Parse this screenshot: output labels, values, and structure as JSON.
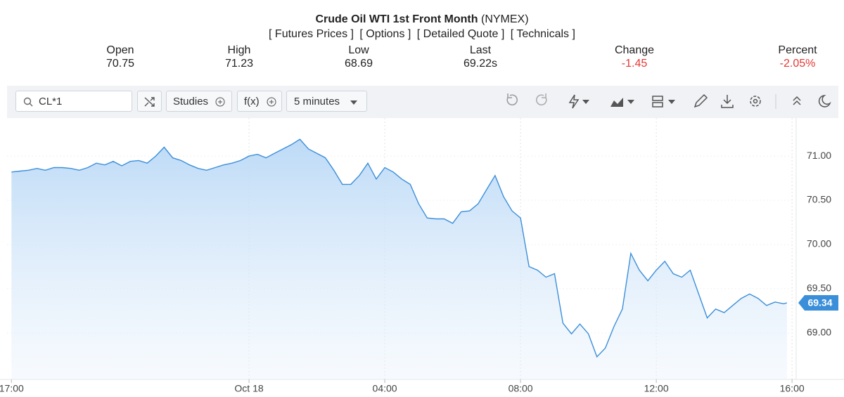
{
  "header": {
    "title": "Crude Oil WTI 1st Front Month",
    "exchange": "(NYMEX)",
    "links": [
      "[ Futures Prices ]",
      "[ Options ]",
      "[ Detailed Quote ]",
      "[ Technicals ]"
    ]
  },
  "quote": [
    {
      "label": "Open",
      "value": "70.75"
    },
    {
      "label": "High",
      "value": "71.23"
    },
    {
      "label": "Low",
      "value": "68.69"
    },
    {
      "label": "Last",
      "value": "69.22s"
    },
    {
      "label": "Change",
      "value": "-1.45"
    },
    {
      "label": "Percent",
      "value": "-2.05%"
    }
  ],
  "toolbar": {
    "symbol": "CL*1",
    "studies": "Studies",
    "function": "f(x)",
    "interval": "5 minutes"
  },
  "chart_data": {
    "type": "line",
    "color": "#3b8fd9",
    "area": true,
    "grid": true,
    "x": [
      17,
      17.25,
      17.5,
      17.75,
      18,
      18.25,
      18.5,
      18.75,
      19,
      19.25,
      19.5,
      19.75,
      20,
      20.25,
      20.5,
      20.75,
      21,
      21.25,
      21.5,
      21.75,
      22,
      22.25,
      22.5,
      22.75,
      23,
      23.25,
      23.5,
      23.75,
      24,
      24.25,
      24.5,
      24.75,
      25,
      25.25,
      25.5,
      25.75,
      26,
      26.25,
      26.5,
      26.75,
      27,
      27.25,
      27.5,
      27.75,
      28,
      28.25,
      28.5,
      28.75,
      29,
      29.25,
      29.5,
      29.75,
      30,
      30.25,
      30.5,
      30.75,
      31,
      31.25,
      31.5,
      31.75,
      32,
      32.25,
      32.5,
      32.75,
      33,
      33.25,
      33.5,
      33.75,
      34,
      34.25,
      34.5,
      34.75,
      35,
      35.25,
      35.5,
      35.75,
      36,
      36.25,
      36.5,
      36.75,
      37,
      37.25,
      37.5,
      37.75,
      38,
      38.25,
      38.5,
      38.75,
      39,
      39.25,
      39.5,
      39.75,
      39.85
    ],
    "values": [
      70.82,
      70.83,
      70.84,
      70.86,
      70.84,
      70.87,
      70.87,
      70.86,
      70.84,
      70.87,
      70.92,
      70.9,
      70.94,
      70.89,
      70.94,
      70.95,
      70.92,
      71.0,
      71.1,
      70.98,
      70.95,
      70.9,
      70.86,
      70.84,
      70.87,
      70.9,
      70.92,
      70.95,
      71.0,
      71.02,
      70.98,
      71.03,
      71.08,
      71.13,
      71.19,
      71.08,
      71.03,
      70.98,
      70.84,
      70.68,
      70.68,
      70.78,
      70.92,
      70.74,
      70.87,
      70.82,
      70.74,
      70.68,
      70.46,
      70.3,
      70.29,
      70.29,
      70.24,
      70.37,
      70.38,
      70.46,
      70.62,
      70.78,
      70.54,
      70.38,
      70.3,
      69.75,
      69.71,
      69.63,
      69.67,
      69.11,
      68.99,
      69.1,
      68.99,
      68.73,
      68.83,
      69.07,
      69.27,
      69.9,
      69.71,
      69.59,
      69.71,
      69.81,
      69.67,
      69.63,
      69.71,
      69.44,
      69.17,
      69.27,
      69.23,
      69.31,
      69.39,
      69.44,
      69.39,
      69.31,
      69.35,
      69.33,
      69.34
    ],
    "xlim": [
      16.87,
      40.08
    ],
    "xticks": [
      {
        "value": 17,
        "label": "17:00"
      },
      {
        "value": 24,
        "label": "Oct 18"
      },
      {
        "value": 28,
        "label": "04:00"
      },
      {
        "value": 32,
        "label": "08:00"
      },
      {
        "value": 36,
        "label": "12:00"
      },
      {
        "value": 40,
        "label": "16:00"
      }
    ],
    "ylim": [
      68.49,
      71.43
    ],
    "yticks": [
      {
        "value": 69,
        "label": "69.00"
      },
      {
        "value": 69.5,
        "label": "69.50"
      },
      {
        "value": 70,
        "label": "70.00"
      },
      {
        "value": 70.5,
        "label": "70.50"
      },
      {
        "value": 71,
        "label": "71.00"
      }
    ]
  }
}
